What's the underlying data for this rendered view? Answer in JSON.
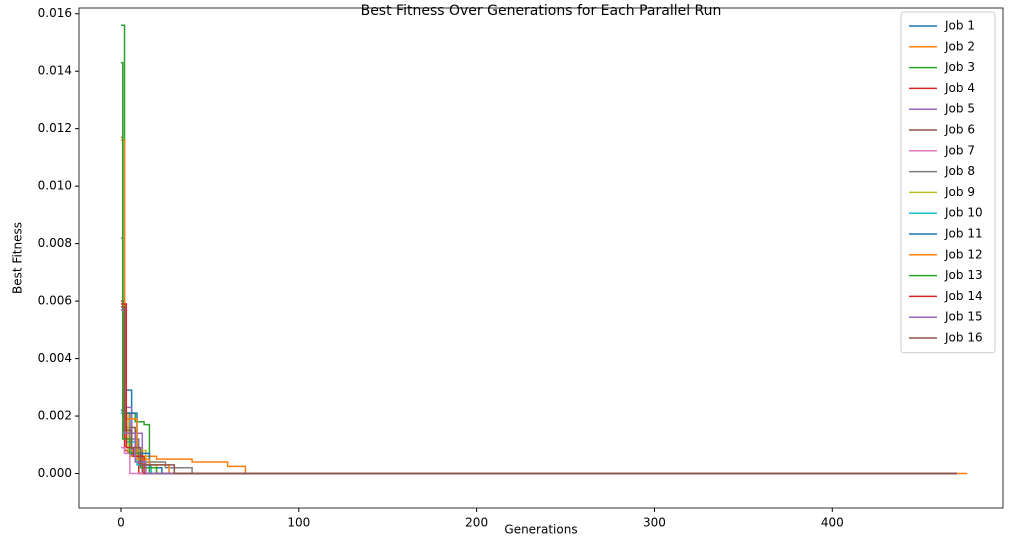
{
  "chart_data": {
    "type": "line",
    "title": "Best Fitness Over Generations for Each Parallel Run",
    "x_label": "Generations",
    "y_label": "Best Fitness",
    "xlim": [
      -23.6,
      496
    ],
    "ylim": [
      -0.0012,
      0.0162
    ],
    "xticks": [
      0,
      100,
      200,
      300,
      400
    ],
    "yticks": [
      {
        "value": 0,
        "label": "0.000"
      },
      {
        "value": 0.002,
        "label": "0.002"
      },
      {
        "value": 0.004,
        "label": "0.004"
      },
      {
        "value": 0.006,
        "label": "0.006"
      },
      {
        "value": 0.008,
        "label": "0.008"
      },
      {
        "value": 0.01,
        "label": "0.010"
      },
      {
        "value": 0.012,
        "label": "0.012"
      },
      {
        "value": 0.014,
        "label": "0.014"
      },
      {
        "value": 0.016,
        "label": "0.016"
      }
    ],
    "legend": "upper right",
    "series": [
      {
        "name": "Job 1",
        "color": "#1f77b4",
        "x": [
          0,
          2,
          2,
          6,
          6,
          10,
          10,
          470
        ],
        "values": [
          0.0022,
          0.0022,
          0.0029,
          0.0029,
          0.0006,
          0.0006,
          0,
          0
        ]
      },
      {
        "name": "Job 2",
        "color": "#ff7f0e",
        "x": [
          0,
          1,
          1,
          5,
          5,
          20,
          20,
          40,
          40,
          60,
          60,
          70,
          70,
          476
        ],
        "values": [
          0.0117,
          0.0117,
          0.0015,
          0.0015,
          0.0006,
          0.0006,
          0.0005,
          0.0005,
          0.0004,
          0.0004,
          0.00025,
          0.00025,
          0,
          0
        ]
      },
      {
        "name": "Job 3",
        "color": "#2ca02c",
        "x": [
          0,
          2,
          2,
          8,
          8,
          13,
          13,
          16,
          16,
          470
        ],
        "values": [
          0.0156,
          0.0156,
          0.0021,
          0.0021,
          0.0018,
          0.0018,
          0.0017,
          0.0017,
          0,
          0
        ]
      },
      {
        "name": "Job 4",
        "color": "#d62728",
        "x": [
          0,
          2,
          2,
          4,
          4,
          10,
          10,
          470
        ],
        "values": [
          0.006,
          0.006,
          0.0008,
          0.0008,
          0.0007,
          0.0007,
          0,
          0
        ]
      },
      {
        "name": "Job 5",
        "color": "#9467bd",
        "x": [
          0,
          1,
          1,
          6,
          6,
          12,
          12,
          470
        ],
        "values": [
          0.0082,
          0.0082,
          0.0023,
          0.0023,
          0.0014,
          0.0014,
          0,
          0
        ]
      },
      {
        "name": "Job 6",
        "color": "#8c564b",
        "x": [
          0,
          3,
          3,
          8,
          8,
          12,
          12,
          470
        ],
        "values": [
          0.0022,
          0.0022,
          0.0016,
          0.0016,
          0.0008,
          0.0008,
          0,
          0
        ]
      },
      {
        "name": "Job 7",
        "color": "#e377c2",
        "x": [
          0,
          2,
          2,
          5,
          5,
          470
        ],
        "values": [
          0.0009,
          0.0009,
          0.0007,
          0.0007,
          0,
          0
        ]
      },
      {
        "name": "Job 8",
        "color": "#7f7f7f",
        "x": [
          0,
          5,
          5,
          10,
          10,
          25,
          25,
          40,
          40,
          470
        ],
        "values": [
          0.0021,
          0.0021,
          0.0012,
          0.0012,
          0.0004,
          0.0004,
          0.0002,
          0.0002,
          0,
          0
        ]
      },
      {
        "name": "Job 9",
        "color": "#bcbd22",
        "x": [
          0,
          4,
          4,
          14,
          14,
          20,
          20,
          470
        ],
        "values": [
          0.0021,
          0.0021,
          0.0008,
          0.0008,
          0.0003,
          0.0003,
          0,
          0
        ]
      },
      {
        "name": "Job 10",
        "color": "#17becf",
        "x": [
          0,
          3,
          3,
          9,
          9,
          17,
          17,
          470
        ],
        "values": [
          0.0021,
          0.0021,
          0.0011,
          0.0011,
          0.0003,
          0.0003,
          0,
          0
        ]
      },
      {
        "name": "Job 11",
        "color": "#1f77b4",
        "x": [
          0,
          3,
          3,
          9,
          9,
          16,
          16,
          23,
          23,
          470
        ],
        "values": [
          0.0022,
          0.0022,
          0.0021,
          0.0021,
          0.0007,
          0.0007,
          0.0002,
          0.0002,
          0,
          0
        ]
      },
      {
        "name": "Job 12",
        "color": "#ff7f0e",
        "x": [
          0,
          2,
          2,
          9,
          9,
          16,
          16,
          27,
          27,
          470
        ],
        "values": [
          0.0116,
          0.0116,
          0.0019,
          0.0019,
          0.0005,
          0.0005,
          0.0003,
          0.0003,
          0,
          0
        ]
      },
      {
        "name": "Job 13",
        "color": "#2ca02c",
        "x": [
          0,
          1,
          1,
          5,
          5,
          11,
          11,
          20,
          20,
          470
        ],
        "values": [
          0.0143,
          0.0143,
          0.0012,
          0.0012,
          0.0007,
          0.0007,
          0.0002,
          0.0002,
          0,
          0
        ]
      },
      {
        "name": "Job 14",
        "color": "#d62728",
        "x": [
          0,
          3,
          3,
          7,
          7,
          13,
          13,
          470
        ],
        "values": [
          0.0059,
          0.0059,
          0.0009,
          0.0009,
          0.0006,
          0.0006,
          0,
          0
        ]
      },
      {
        "name": "Job 15",
        "color": "#9467bd",
        "x": [
          0,
          2,
          2,
          8,
          8,
          14,
          14,
          470
        ],
        "values": [
          0.0057,
          0.0057,
          0.0014,
          0.0014,
          0.0004,
          0.0004,
          0,
          0
        ]
      },
      {
        "name": "Job 16",
        "color": "#8c564b",
        "x": [
          0,
          2,
          2,
          6,
          6,
          11,
          11,
          30,
          30,
          470
        ],
        "values": [
          0.0058,
          0.0058,
          0.0015,
          0.0015,
          0.0009,
          0.0009,
          0.0003,
          0.0003,
          0,
          0
        ]
      }
    ]
  }
}
